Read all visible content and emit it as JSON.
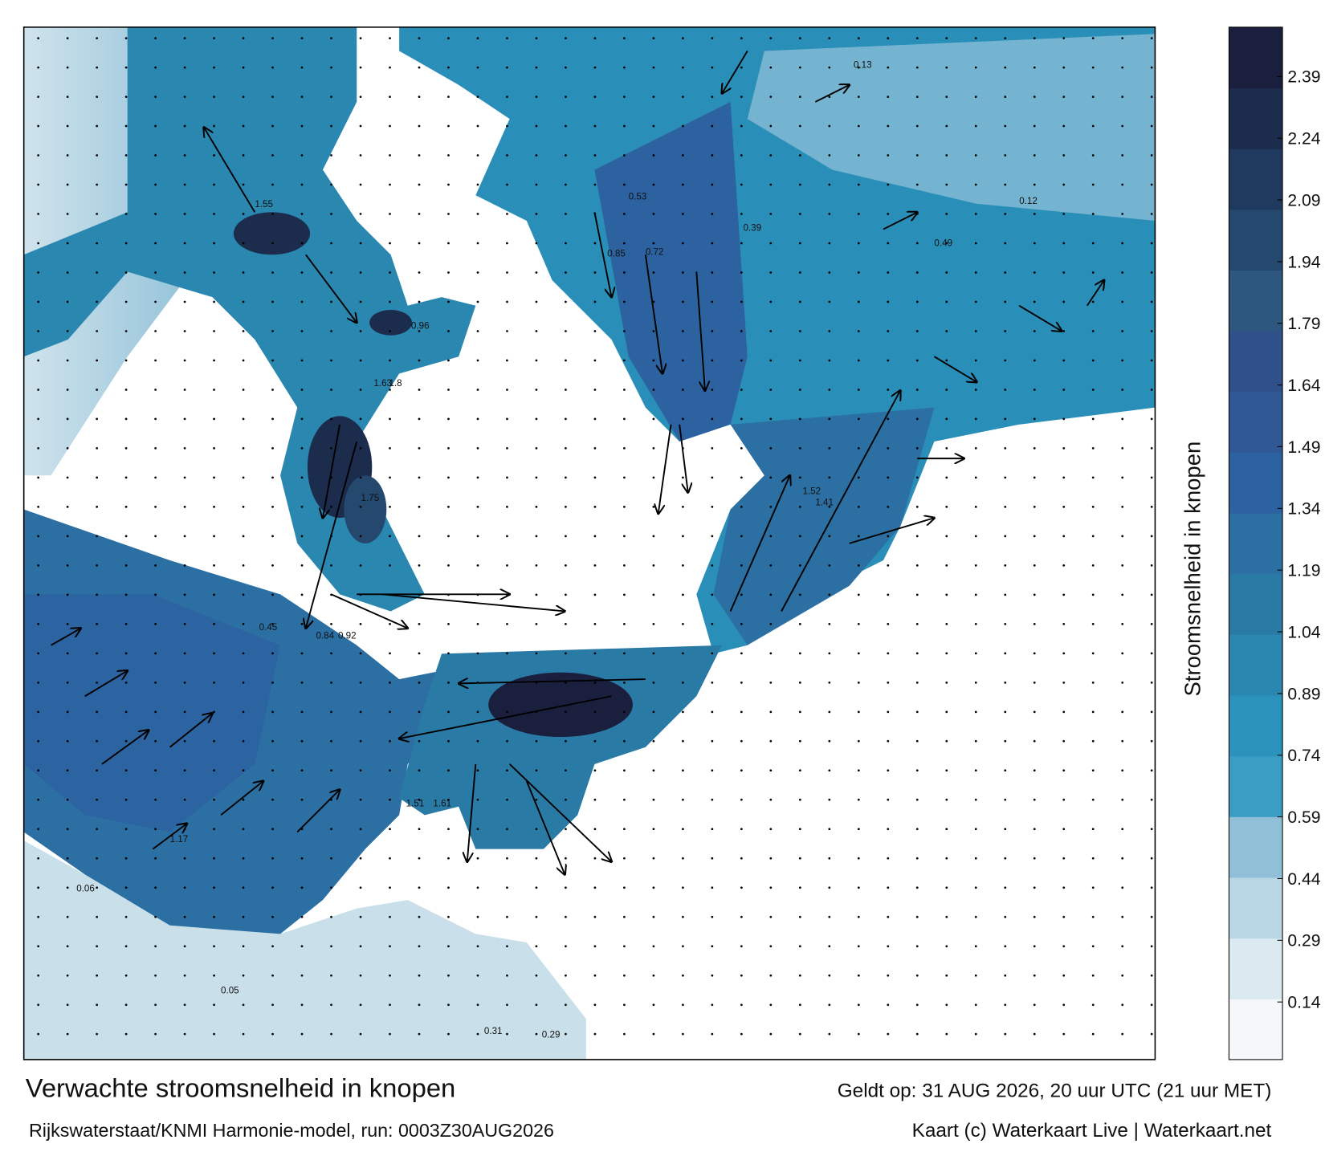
{
  "map": {
    "title": "Verwachte stroomsnelheid in knopen",
    "subtitle": "Rijkswaterstaat/KNMI Harmonie-model, run: 0003Z30AUG2026",
    "valid_time": "Geldt op: 31 AUG 2026, 20 uur UTC (21 uur MET)",
    "credit": "Kaart (c) Waterkaart Live | Waterkaart.net",
    "labels": [
      "0.84",
      "0.92",
      "1.55",
      "1.63",
      "1.8",
      "1.75",
      "1.17",
      "1.51",
      "1.61",
      "0.45",
      "0.53",
      "0.72",
      "0.85",
      "1.52",
      "1.41",
      "0.96",
      "0.06",
      "0.05",
      "0.31",
      "0.29",
      "0.13",
      "0.49",
      "0.12",
      "0.39"
    ],
    "colorbar": {
      "label": "Stroomsnelheid in knopen",
      "lim": [
        0,
        2.51
      ],
      "ticks": [
        0.14,
        0.29,
        0.44,
        0.59,
        0.74,
        0.89,
        1.04,
        1.19,
        1.34,
        1.49,
        1.64,
        1.79,
        1.94,
        2.09,
        2.24,
        2.39
      ],
      "colors": [
        "#f4f8fa",
        "#dbe9f0",
        "#b9d6e4",
        "#8fc0d8",
        "#3a9ec4",
        "#2a92bb",
        "#2a87b0",
        "#2a7aa6",
        "#2b6fa3",
        "#2d62a0",
        "#2f5895",
        "#2f5089",
        "#2e577f",
        "#24486e",
        "#1f3a5e",
        "#1c2c4d",
        "#1a1f3d"
      ]
    }
  }
}
